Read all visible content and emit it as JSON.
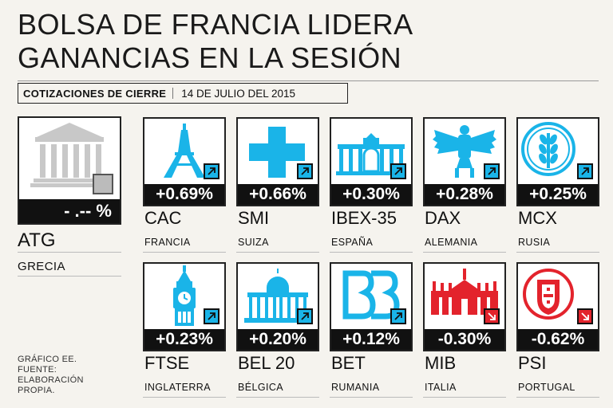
{
  "title": {
    "line1": "BOLSA DE FRANCIA LIDERA",
    "line2": "GANANCIAS EN LA SESIÓN"
  },
  "dateline": {
    "label": "COTIZACIONES DE CIERRE",
    "date": "14 DE JULIO DEL 2015"
  },
  "colors": {
    "up": "#1ab4e8",
    "down": "#e3232c",
    "neutral": "#bbbbbb"
  },
  "greece": {
    "change": "- .-- %",
    "index": "ATG",
    "country": "GRECIA",
    "direction": "flat",
    "icon": "parthenon-icon"
  },
  "markets": [
    {
      "change": "+0.69%",
      "index": "CAC",
      "country": "FRANCIA",
      "direction": "up",
      "icon": "eiffel-tower-icon"
    },
    {
      "change": "+0.66%",
      "index": "SMI",
      "country": "SUIZA",
      "direction": "up",
      "icon": "swiss-cross-icon"
    },
    {
      "change": "+0.30%",
      "index": "IBEX-35",
      "country": "ESPAÑA",
      "direction": "up",
      "icon": "puerta-de-alcala-icon"
    },
    {
      "change": "+0.28%",
      "index": "DAX",
      "country": "ALEMANIA",
      "direction": "up",
      "icon": "german-eagle-icon"
    },
    {
      "change": "+0.25%",
      "index": "MCX",
      "country": "RUSIA",
      "direction": "up",
      "icon": "wheat-emblem-icon"
    },
    {
      "change": "+0.23%",
      "index": "FTSE",
      "country": "INGLATERRA",
      "direction": "up",
      "icon": "big-ben-icon"
    },
    {
      "change": "+0.20%",
      "index": "BEL 20",
      "country": "BÉLGICA",
      "direction": "up",
      "icon": "palace-of-justice-icon"
    },
    {
      "change": "+0.12%",
      "index": "BET",
      "country": "RUMANIA",
      "direction": "up",
      "icon": "bvb-logo-icon"
    },
    {
      "change": "-0.30%",
      "index": "MIB",
      "country": "ITALIA",
      "direction": "down",
      "icon": "milan-cathedral-icon"
    },
    {
      "change": "-0.62%",
      "index": "PSI",
      "country": "PORTUGAL",
      "direction": "down",
      "icon": "portuguese-shield-icon"
    }
  ],
  "source": {
    "line1": "GRÁFICO EE.",
    "line2": "FUENTE:",
    "line3": "ELABORACIÓN",
    "line4": "PROPIA."
  }
}
